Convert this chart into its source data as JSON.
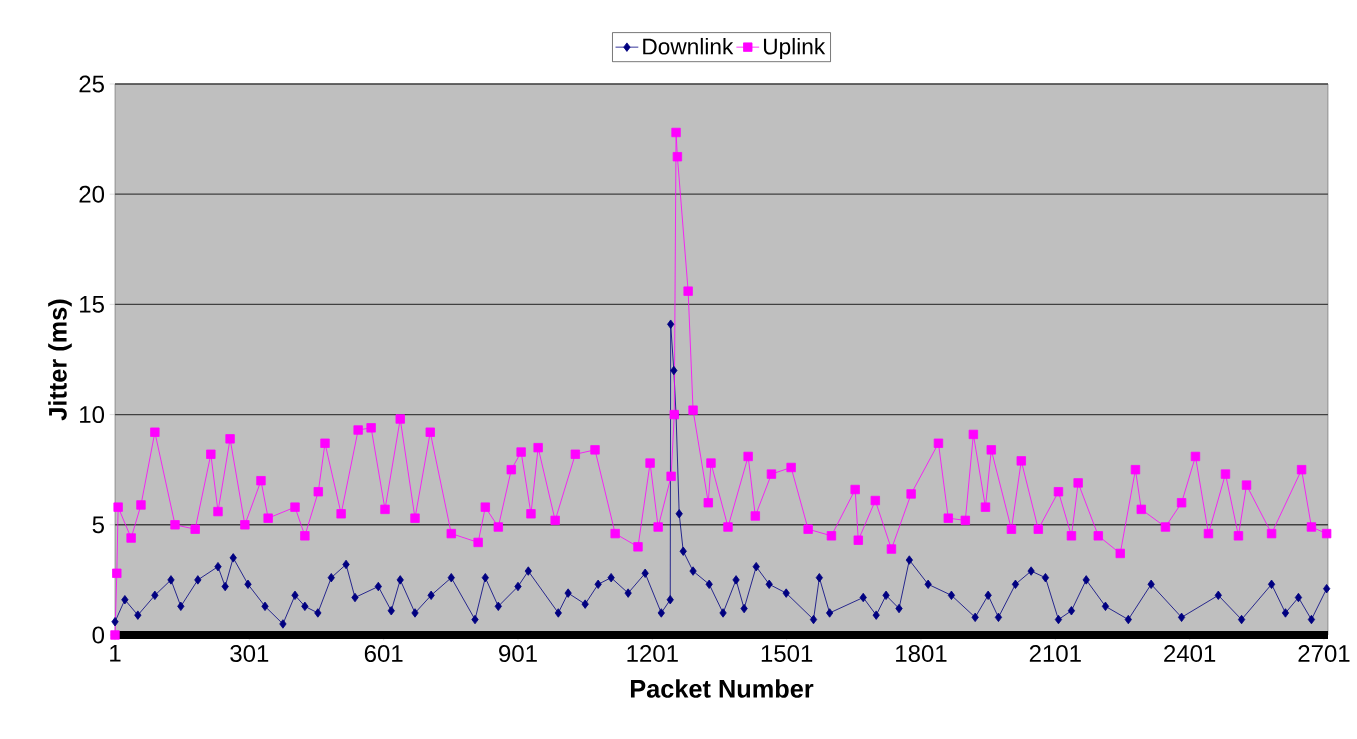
{
  "chart_data": {
    "type": "line",
    "xlabel": "Packet Number",
    "ylabel": "Jitter (ms)",
    "xlim": [
      1,
      2710
    ],
    "xticks": [
      1,
      301,
      601,
      901,
      1201,
      1501,
      1801,
      2101,
      2401,
      2701
    ],
    "ylim": [
      0,
      25
    ],
    "yticks": [
      0,
      5,
      10,
      15,
      20,
      25
    ],
    "grid": "y",
    "legend": "top",
    "line_style": "solid",
    "series": [
      {
        "name": "Downlink",
        "color": "#000080",
        "marker": "diamond",
        "x": [
          1,
          23,
          52,
          90,
          126,
          148,
          186,
          231,
          247,
          265,
          298,
          336,
          376,
          403,
          425,
          454,
          484,
          517,
          537,
          589,
          618,
          638,
          671,
          707,
          752,
          805,
          828,
          857,
          901,
          924,
          991,
          1013,
          1051,
          1080,
          1109,
          1147,
          1185,
          1221,
          1241,
          1242,
          1249,
          1254,
          1261,
          1270,
          1292,
          1328,
          1359,
          1388,
          1406,
          1433,
          1462,
          1500,
          1561,
          1574,
          1597,
          1672,
          1701,
          1723,
          1752,
          1775,
          1817,
          1869,
          1922,
          1951,
          1974,
          2012,
          2047,
          2079,
          2108,
          2137,
          2170,
          2213,
          2264,
          2315,
          2383,
          2465,
          2517,
          2584,
          2615,
          2644,
          2673,
          2707
        ],
        "values": [
          0.6,
          1.6,
          0.9,
          1.8,
          2.5,
          1.3,
          2.5,
          3.1,
          2.2,
          3.5,
          2.3,
          1.3,
          0.5,
          1.8,
          1.3,
          1.0,
          2.6,
          3.2,
          1.7,
          2.2,
          1.1,
          2.5,
          1.0,
          1.8,
          2.6,
          0.7,
          2.6,
          1.3,
          2.2,
          2.9,
          1.0,
          1.9,
          1.4,
          2.3,
          2.6,
          1.9,
          2.8,
          1.0,
          1.6,
          14.1,
          12.0,
          10.0,
          5.5,
          3.8,
          2.9,
          2.3,
          1.0,
          2.5,
          1.2,
          3.1,
          2.3,
          1.9,
          0.7,
          2.6,
          1.0,
          1.7,
          0.9,
          1.8,
          1.2,
          3.4,
          2.3,
          1.8,
          0.8,
          1.8,
          0.8,
          2.3,
          2.9,
          2.6,
          0.7,
          1.1,
          2.5,
          1.3,
          0.7,
          2.3,
          0.8,
          1.8,
          0.7,
          2.3,
          1.0,
          1.7,
          0.7,
          2.1
        ]
      },
      {
        "name": "Uplink",
        "color": "#ff00ff",
        "marker": "square",
        "x": [
          1,
          5,
          8,
          37,
          59,
          90,
          135,
          180,
          215,
          231,
          258,
          291,
          327,
          343,
          403,
          425,
          455,
          470,
          506,
          544,
          573,
          604,
          638,
          671,
          705,
          752,
          812,
          828,
          857,
          886,
          908,
          930,
          946,
          984,
          1029,
          1073,
          1118,
          1169,
          1196,
          1214,
          1243,
          1250,
          1254,
          1257,
          1281,
          1292,
          1326,
          1332,
          1370,
          1415,
          1431,
          1467,
          1511,
          1549,
          1601,
          1654,
          1661,
          1699,
          1735,
          1779,
          1840,
          1862,
          1900,
          1918,
          1945,
          1958,
          2003,
          2025,
          2063,
          2108,
          2137,
          2152,
          2197,
          2246,
          2280,
          2293,
          2347,
          2383,
          2414,
          2443,
          2481,
          2510,
          2528,
          2584,
          2651,
          2673,
          2707
        ],
        "values": [
          0,
          2.8,
          5.8,
          4.4,
          5.9,
          9.2,
          5.0,
          4.8,
          8.2,
          5.6,
          8.9,
          5.0,
          7.0,
          5.3,
          5.8,
          4.5,
          6.5,
          8.7,
          5.5,
          9.3,
          9.4,
          5.7,
          9.8,
          5.3,
          9.2,
          4.6,
          4.2,
          5.8,
          4.9,
          7.5,
          8.3,
          5.5,
          8.5,
          5.2,
          8.2,
          8.4,
          4.6,
          4.0,
          7.8,
          4.9,
          7.2,
          10.0,
          22.8,
          21.7,
          15.6,
          10.2,
          6.0,
          7.8,
          4.9,
          8.1,
          5.4,
          7.3,
          7.6,
          4.8,
          4.5,
          6.6,
          4.3,
          6.1,
          3.9,
          6.4,
          8.7,
          5.3,
          5.2,
          9.1,
          5.8,
          8.4,
          4.8,
          7.9,
          4.8,
          6.5,
          4.5,
          6.9,
          4.5,
          3.7,
          7.5,
          5.7,
          4.9,
          6.0,
          8.1,
          4.6,
          7.3,
          4.5,
          6.8,
          4.6,
          7.5,
          4.9,
          4.6
        ]
      }
    ]
  }
}
